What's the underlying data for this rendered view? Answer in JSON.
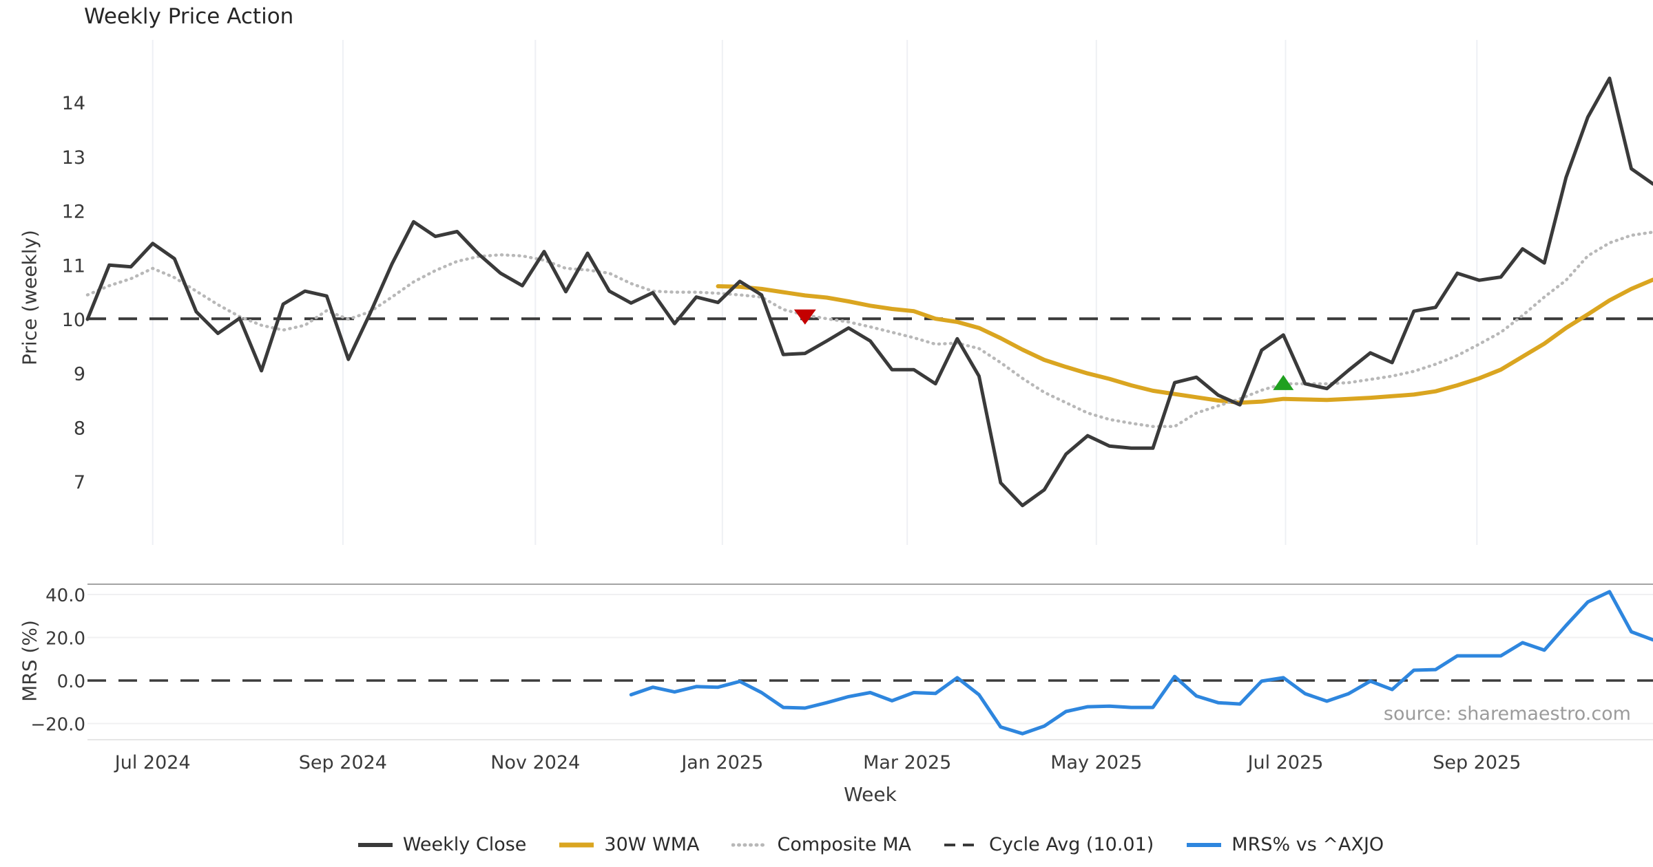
{
  "title": "Weekly Price Action",
  "source_note": "source: sharemaestro.com",
  "colors": {
    "weekly_close": "#3a3a3a",
    "wma_30": "#DAA520",
    "composite_ma": "#b8b8b8",
    "cycle_avg": "#3a3a3a",
    "mrs": "#2e86de",
    "sell_marker": "#c40000",
    "buy_marker": "#1fa01f",
    "grid_v": "#eef0f4",
    "grid_h": "#f0f0f2",
    "spine": "#a3a3a3",
    "spine_light": "#e6e6e6",
    "zero_line": "#3d3d3d",
    "tick_text": "#3a3a3a"
  },
  "legend": {
    "items": [
      {
        "label": "Weekly Close",
        "style": "solid",
        "color": "weekly_close",
        "stroke_width": 6
      },
      {
        "label": "30W WMA",
        "style": "solid",
        "color": "wma_30",
        "stroke_width": 7
      },
      {
        "label": "Composite MA",
        "style": "dotted",
        "color": "composite_ma",
        "stroke_width": 5
      },
      {
        "label": "Cycle Avg (10.01)",
        "style": "dashed",
        "color": "cycle_avg",
        "stroke_width": 4
      },
      {
        "label": "MRS% vs ^AXJO",
        "style": "solid",
        "color": "mrs",
        "stroke_width": 6
      }
    ]
  },
  "chart_data": {
    "type": "line",
    "x_unit": "weeks",
    "xlabel": "Week",
    "x_ticks": [
      {
        "label": "Jul 2024",
        "week": 3
      },
      {
        "label": "Sep 2024",
        "week": 11.75
      },
      {
        "label": "Nov 2024",
        "week": 20.6
      },
      {
        "label": "Jan 2025",
        "week": 29.2
      },
      {
        "label": "Mar 2025",
        "week": 37.7
      },
      {
        "label": "May 2025",
        "week": 46.4
      },
      {
        "label": "Jul 2025",
        "week": 55.1
      },
      {
        "label": "Sep 2025",
        "week": 63.9
      }
    ],
    "panels": [
      {
        "id": "price",
        "ylabel": "Price (weekly)",
        "ylim": [
          5.8,
          15.2
        ],
        "yticks": [
          7,
          8,
          9,
          10,
          11,
          12,
          13,
          14
        ],
        "ytick_labels": [
          "7",
          "8",
          "9",
          "10",
          "11",
          "12",
          "13",
          "14"
        ],
        "grid": "vertical",
        "series": [
          {
            "name": "Weekly Close",
            "color": "weekly_close",
            "style": "solid",
            "stroke_width": 5,
            "start_week": 0,
            "values": [
              10.0,
              11.0,
              10.97,
              11.4,
              11.12,
              10.14,
              9.74,
              10.02,
              9.05,
              10.28,
              10.52,
              10.43,
              9.26,
              10.11,
              11.02,
              11.8,
              11.53,
              11.62,
              11.2,
              10.85,
              10.62,
              11.25,
              10.51,
              11.22,
              10.52,
              10.3,
              10.49,
              9.92,
              10.41,
              10.31,
              10.7,
              10.45,
              9.35,
              9.37,
              9.6,
              9.84,
              9.6,
              9.07,
              9.07,
              8.81,
              9.64,
              8.95,
              6.98,
              6.56,
              6.85,
              7.51,
              7.85,
              7.66,
              7.62,
              7.62,
              8.83,
              8.93,
              8.6,
              8.42,
              9.43,
              9.71,
              8.81,
              8.72,
              9.06,
              9.38,
              9.2,
              10.15,
              10.22,
              10.85,
              10.72,
              10.78,
              11.3,
              11.04,
              12.62,
              13.73,
              14.45,
              12.78,
              12.5
            ]
          },
          {
            "name": "30W WMA",
            "color": "wma_30",
            "style": "solid",
            "stroke_width": 6,
            "start_week": 29,
            "values": [
              10.61,
              10.6,
              10.56,
              10.5,
              10.44,
              10.4,
              10.33,
              10.25,
              10.19,
              10.15,
              10.01,
              9.95,
              9.84,
              9.65,
              9.44,
              9.25,
              9.12,
              9.0,
              8.9,
              8.78,
              8.68,
              8.62,
              8.56,
              8.5,
              8.46,
              8.48,
              8.53,
              8.52,
              8.51,
              8.53,
              8.55,
              8.58,
              8.61,
              8.67,
              8.78,
              8.91,
              9.07,
              9.31,
              9.55,
              9.84,
              10.09,
              10.35,
              10.56,
              10.73
            ]
          },
          {
            "name": "Composite MA",
            "color": "composite_ma",
            "style": "dotted",
            "stroke_width": 4.5,
            "start_week": 0,
            "values": [
              10.45,
              10.62,
              10.75,
              10.94,
              10.77,
              10.52,
              10.27,
              10.05,
              9.89,
              9.8,
              9.89,
              10.16,
              10.0,
              10.14,
              10.41,
              10.69,
              10.9,
              11.07,
              11.16,
              11.19,
              11.17,
              11.09,
              10.94,
              10.91,
              10.85,
              10.66,
              10.52,
              10.5,
              10.5,
              10.48,
              10.45,
              10.41,
              10.18,
              10.08,
              10.01,
              9.95,
              9.86,
              9.76,
              9.66,
              9.54,
              9.56,
              9.46,
              9.2,
              8.91,
              8.65,
              8.46,
              8.27,
              8.15,
              8.08,
              8.02,
              8.02,
              8.27,
              8.4,
              8.53,
              8.69,
              8.81,
              8.81,
              8.81,
              8.83,
              8.89,
              8.95,
              9.04,
              9.17,
              9.33,
              9.54,
              9.76,
              10.07,
              10.41,
              10.72,
              11.17,
              11.41,
              11.55,
              11.61
            ]
          },
          {
            "name": "Cycle Avg",
            "color": "cycle_avg",
            "style": "dashed",
            "stroke_width": 4,
            "constant": 10.01
          }
        ],
        "markers": [
          {
            "type": "sell-signal",
            "shape": "triangle-down",
            "week": 33,
            "value": 10.08,
            "color": "sell_marker"
          },
          {
            "type": "buy-signal",
            "shape": "triangle-up",
            "week": 55,
            "value": 8.82,
            "color": "buy_marker"
          }
        ]
      },
      {
        "id": "mrs",
        "ylabel": "MRS (%)",
        "ylim": [
          -27.5,
          44.8
        ],
        "yticks": [
          40,
          20,
          0,
          -20
        ],
        "ytick_labels": [
          "40.0",
          "20.0",
          "0.0",
          "−20.0"
        ],
        "grid": "horizontal",
        "series": [
          {
            "name": "MRS% vs ^AXJO",
            "color": "mrs",
            "style": "solid",
            "stroke_width": 5,
            "start_week": 25,
            "values": [
              -6.6,
              -3.1,
              -5.3,
              -2.8,
              -3.1,
              -0.4,
              -5.6,
              -12.5,
              -12.8,
              -10.3,
              -7.5,
              -5.6,
              -9.4,
              -5.6,
              -6.0,
              1.3,
              -6.6,
              -21.6,
              -24.7,
              -21.2,
              -14.4,
              -12.2,
              -11.9,
              -12.5,
              -12.5,
              1.9,
              -7.2,
              -10.3,
              -10.9,
              -0.3,
              1.3,
              -6.1,
              -9.6,
              -6.1,
              -0.3,
              -4.2,
              4.8,
              5.1,
              11.5,
              11.5,
              11.5,
              17.6,
              14.1,
              25.6,
              36.5,
              41.3,
              22.7,
              18.9
            ]
          },
          {
            "name": "Zero Line",
            "color": "zero_line",
            "style": "dashed",
            "stroke_width": 3.5,
            "constant": 0
          }
        ]
      }
    ]
  }
}
